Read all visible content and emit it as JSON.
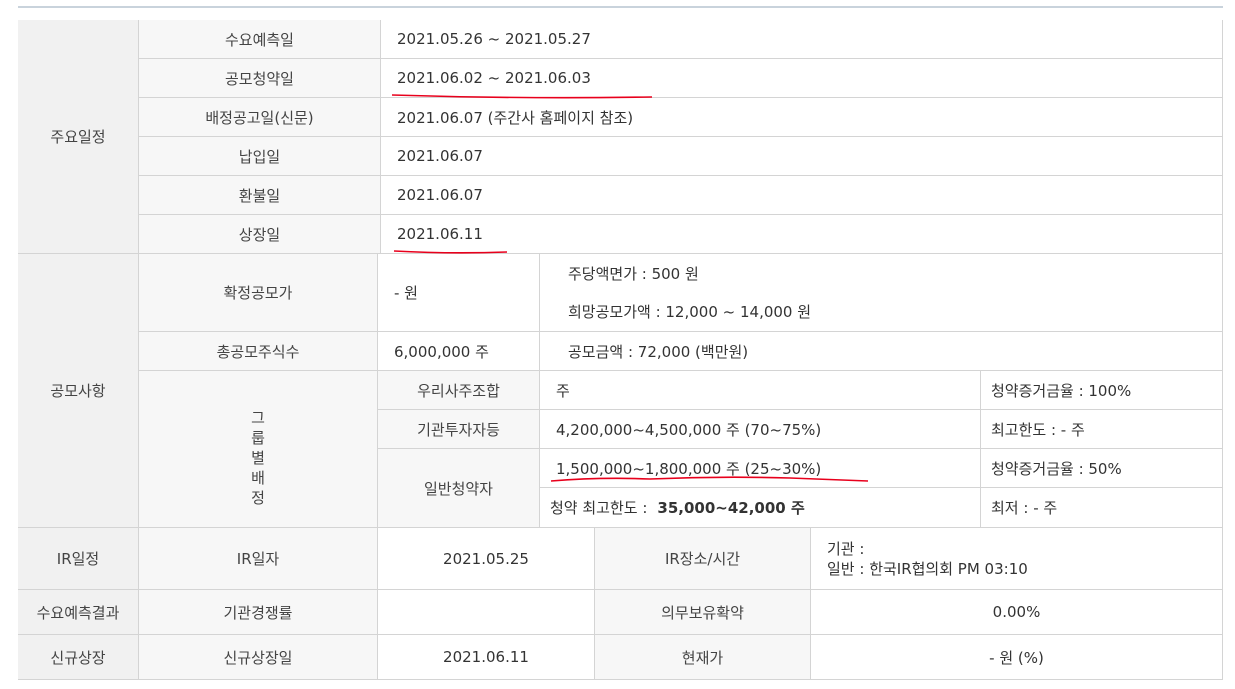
{
  "schedule": {
    "section_label": "주요일정",
    "rows": [
      {
        "label": "수요예측일",
        "value": "2021.05.26  ~  2021.05.27"
      },
      {
        "label": "공모청약일",
        "value": "2021.06.02  ~  2021.06.03"
      },
      {
        "label": "배정공고일(신문)",
        "value": "2021.06.07 (주간사 홈페이지 참조)"
      },
      {
        "label": "납입일",
        "value": "2021.06.07"
      },
      {
        "label": "환불일",
        "value": "2021.06.07"
      },
      {
        "label": "상장일",
        "value": "2021.06.11"
      }
    ]
  },
  "offering": {
    "section_label": "공모사항",
    "final_price_label": "확정공모가",
    "final_price_value": "- 원",
    "par_value": "주당액면가 :  500 원",
    "desired_price": "희망공모가액 :  12,000 ~ 14,000 원",
    "total_shares_label": "총공모주식수",
    "total_shares_value": "6,000,000 주",
    "offering_amount": "공모금액 :  72,000 (백만원)",
    "group_label_chars": [
      "그",
      "룹",
      "별",
      "배",
      "정"
    ],
    "groups": {
      "employee": {
        "label": "우리사주조합",
        "shares": "주",
        "note": "청약증거금율 : 100%"
      },
      "institution": {
        "label": "기관투자자등",
        "shares": "4,200,000~4,500,000 주  (70~75%)",
        "note": "최고한도 :  - 주"
      },
      "retail": {
        "label": "일반청약자",
        "shares": "1,500,000~1,800,000 주  (25~30%)",
        "note": "청약증거금율 : 50%",
        "limit_label": "청약 최고한도 :",
        "limit_value": "35,000~42,000 주",
        "minimum": "최저 :  - 주"
      }
    }
  },
  "ir": {
    "section_label": "IR일정",
    "date_label": "IR일자",
    "date_value": "2021.05.25",
    "place_label": "IR장소/시간",
    "place_institution": "기관 :",
    "place_general": "일반 : 한국IR협의회 PM 03:10"
  },
  "demand": {
    "section_label": "수요예측결과",
    "competition_label": "기관경쟁률",
    "competition_value": "",
    "lockup_label": "의무보유확약",
    "lockup_value": "0.00%"
  },
  "listing": {
    "section_label": "신규상장",
    "date_label": "신규상장일",
    "date_value": "2021.06.11",
    "price_label": "현재가",
    "price_value": "- 원 (%)"
  },
  "colors": {
    "underline": "#e8001c",
    "header_bg": "#f1f1f1",
    "border": "#d4d4d4"
  }
}
